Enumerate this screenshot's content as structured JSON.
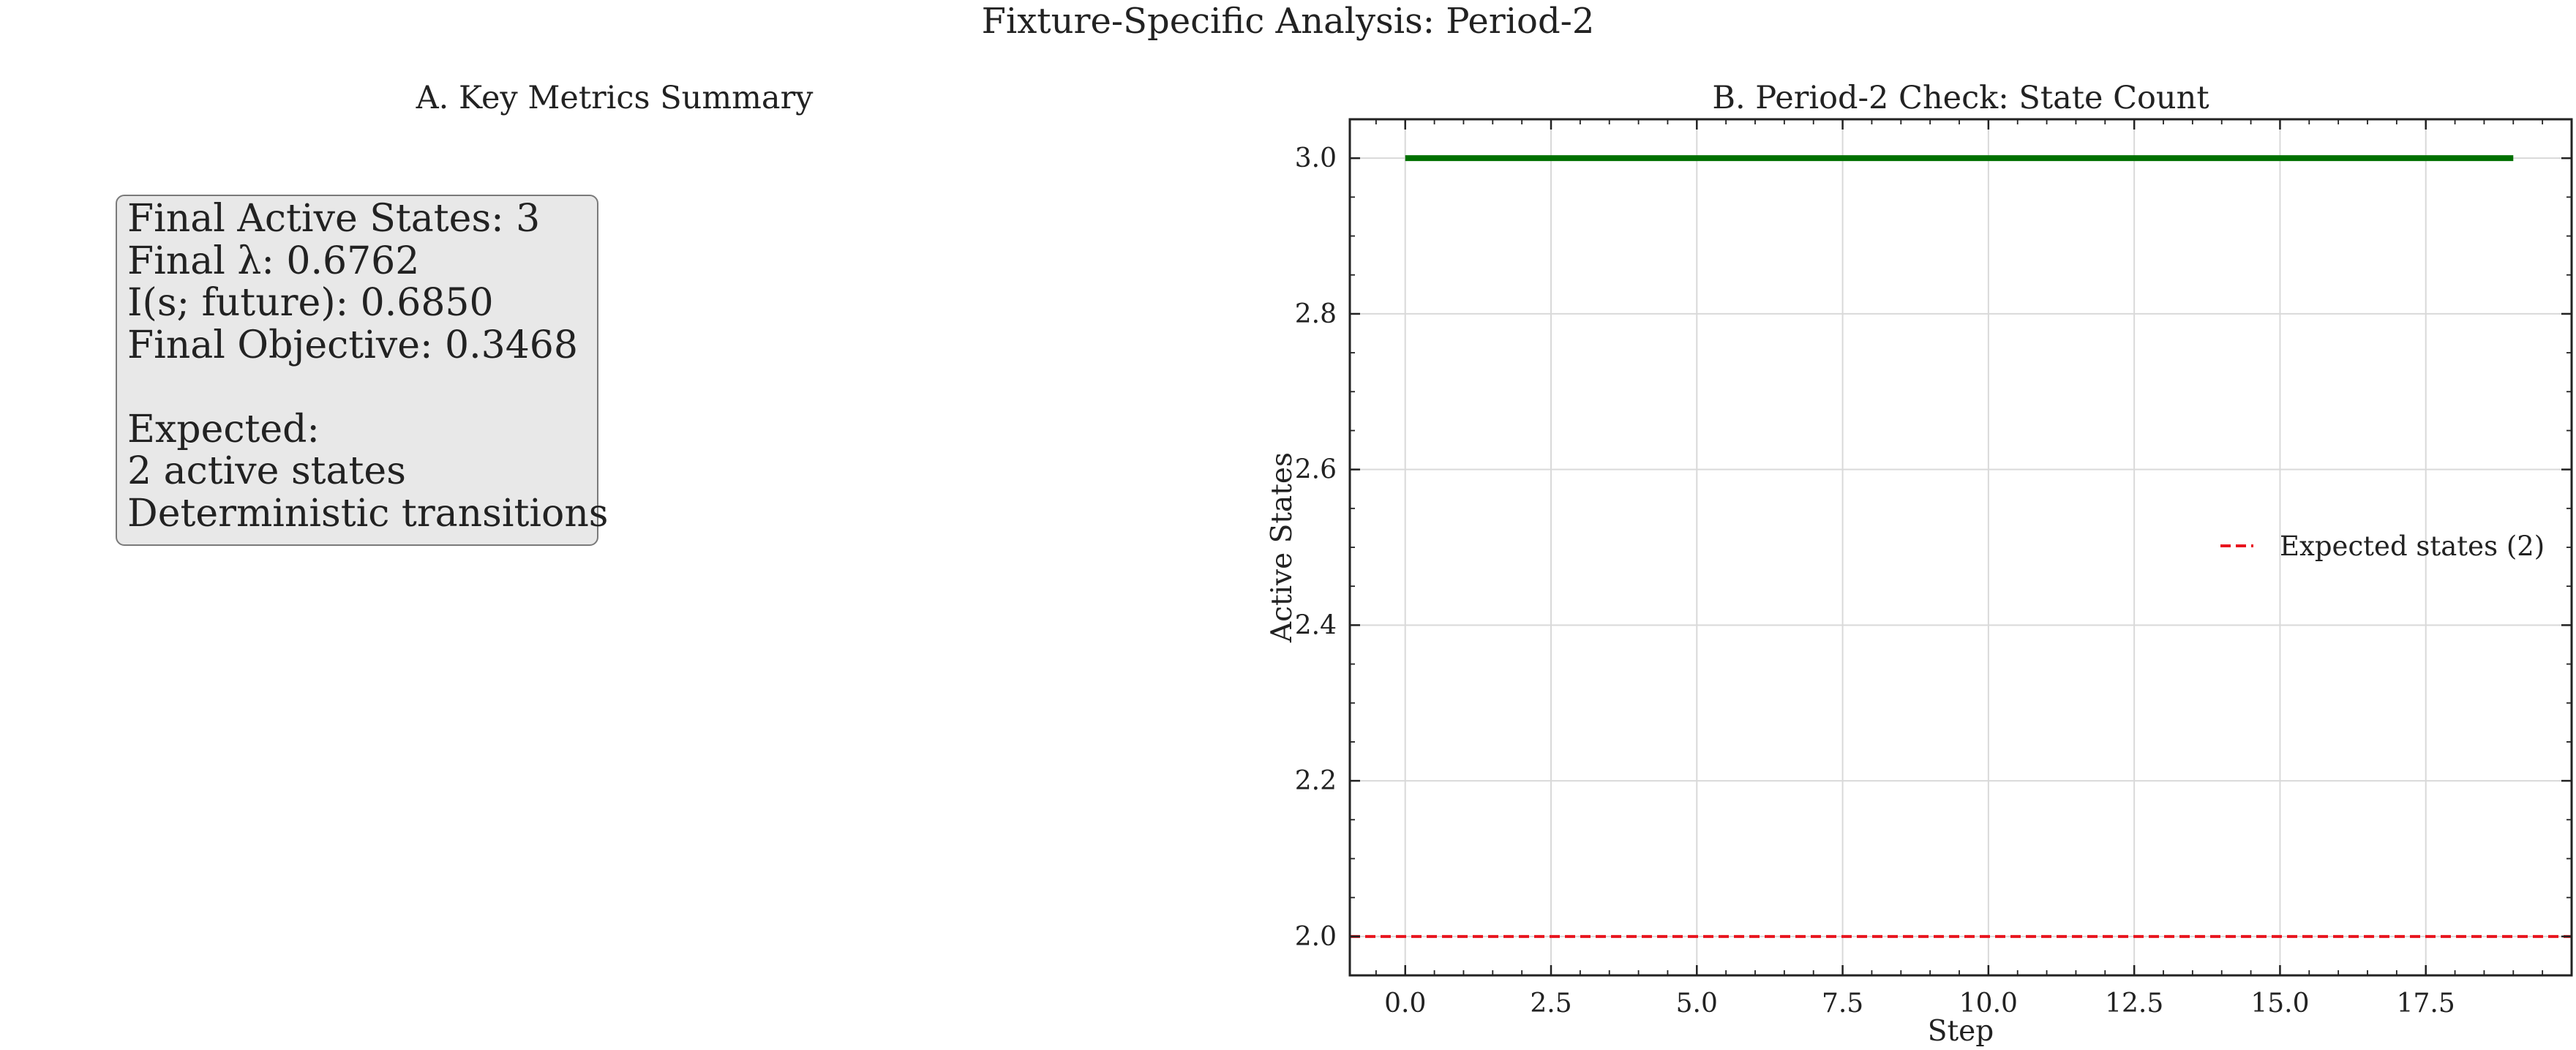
{
  "figure": {
    "title": "Fixture-Specific Analysis: Period-2"
  },
  "panel_a": {
    "title": "A. Key Metrics Summary",
    "lines": [
      "Final Active States: 3",
      "Final λ: 0.6762",
      "I(s; future): 0.6850",
      "Final Objective: 0.3468",
      "",
      "Expected:",
      "2 active states",
      "Deterministic transitions"
    ]
  },
  "chart_data": {
    "type": "line",
    "title": "B. Period-2 Check: State Count",
    "xlabel": "Step",
    "ylabel": "Active States",
    "xlim": [
      -0.95,
      20.0
    ],
    "ylim": [
      1.95,
      3.05
    ],
    "xticks": [
      0.0,
      2.5,
      5.0,
      7.5,
      10.0,
      12.5,
      15.0,
      17.5
    ],
    "yticks": [
      2.0,
      2.2,
      2.4,
      2.6,
      2.8,
      3.0
    ],
    "grid": true,
    "legend_position": "center-right",
    "series": [
      {
        "style": "solid",
        "color": "#007000",
        "x": [
          0,
          1,
          2,
          3,
          4,
          5,
          6,
          7,
          8,
          9,
          10,
          11,
          12,
          13,
          14,
          15,
          16,
          17,
          18,
          19
        ],
        "values": [
          3,
          3,
          3,
          3,
          3,
          3,
          3,
          3,
          3,
          3,
          3,
          3,
          3,
          3,
          3,
          3,
          3,
          3,
          3,
          3
        ]
      }
    ],
    "reference_lines": [
      {
        "name": "Expected states (2)",
        "y": 2.0,
        "style": "dashed",
        "color": "#e8141e"
      }
    ]
  }
}
